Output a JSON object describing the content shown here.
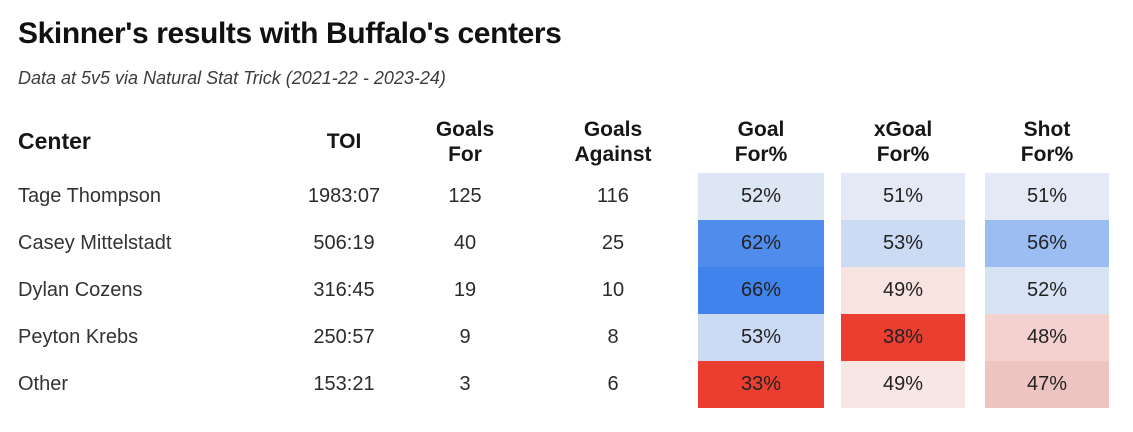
{
  "header": {
    "title": "Skinner's results with Buffalo's centers",
    "subtitle": "Data at 5v5 via Natural Stat Trick (2021-22 - 2023-24)"
  },
  "table": {
    "columns": [
      {
        "line1": "Center",
        "line2": ""
      },
      {
        "line1": "TOI",
        "line2": ""
      },
      {
        "line1": "Goals",
        "line2": "For"
      },
      {
        "line1": "Goals",
        "line2": "Against"
      },
      {
        "line1": "Goal",
        "line2": "For%"
      },
      {
        "line1": "xGoal",
        "line2": "For%"
      },
      {
        "line1": "Shot",
        "line2": "For%"
      }
    ],
    "rows": [
      {
        "center": "Tage Thompson",
        "toi": "1983:07",
        "goals_for": "125",
        "goals_against": "116",
        "goal_for_pct": {
          "value": "52%",
          "bg": "#dde6f3"
        },
        "xgoal_for_pct": {
          "value": "51%",
          "bg": "#e4e9f5"
        },
        "shot_for_pct": {
          "value": "51%",
          "bg": "#e4e9f5"
        }
      },
      {
        "center": "Casey Mittelstadt",
        "toi": "506:19",
        "goals_for": "40",
        "goals_against": "25",
        "goal_for_pct": {
          "value": "62%",
          "bg": "#4f8ceb"
        },
        "xgoal_for_pct": {
          "value": "53%",
          "bg": "#ccdbf4"
        },
        "shot_for_pct": {
          "value": "56%",
          "bg": "#9cbdf1"
        }
      },
      {
        "center": "Dylan Cozens",
        "toi": "316:45",
        "goals_for": "19",
        "goals_against": "10",
        "goal_for_pct": {
          "value": "66%",
          "bg": "#4183ec"
        },
        "xgoal_for_pct": {
          "value": "49%",
          "bg": "#f7e3e0"
        },
        "shot_for_pct": {
          "value": "52%",
          "bg": "#d7e2f5"
        }
      },
      {
        "center": "Peyton Krebs",
        "toi": "250:57",
        "goals_for": "9",
        "goals_against": "8",
        "goal_for_pct": {
          "value": "53%",
          "bg": "#ccdbf4"
        },
        "xgoal_for_pct": {
          "value": "38%",
          "bg": "#ec3e30"
        },
        "shot_for_pct": {
          "value": "48%",
          "bg": "#f2d1ce"
        }
      },
      {
        "center": "Other",
        "toi": "153:21",
        "goals_for": "3",
        "goals_against": "6",
        "goal_for_pct": {
          "value": "33%",
          "bg": "#ec3e30"
        },
        "xgoal_for_pct": {
          "value": "49%",
          "bg": "#f8e6e4"
        },
        "shot_for_pct": {
          "value": "47%",
          "bg": "#eec4c2"
        }
      }
    ]
  },
  "chart_data": {
    "type": "table",
    "title": "Skinner's results with Buffalo's centers",
    "subtitle": "Data at 5v5 via Natural Stat Trick (2021-22 - 2023-24)",
    "columns": [
      "Center",
      "TOI",
      "Goals For",
      "Goals Against",
      "Goal For%",
      "xGoal For%",
      "Shot For%"
    ],
    "rows": [
      [
        "Tage Thompson",
        "1983:07",
        125,
        116,
        "52%",
        "51%",
        "51%"
      ],
      [
        "Casey Mittelstadt",
        "506:19",
        40,
        25,
        "62%",
        "53%",
        "56%"
      ],
      [
        "Dylan Cozens",
        "316:45",
        19,
        10,
        "66%",
        "49%",
        "52%"
      ],
      [
        "Peyton Krebs",
        "250:57",
        9,
        8,
        "53%",
        "38%",
        "48%"
      ],
      [
        "Other",
        "153:21",
        3,
        6,
        "33%",
        "49%",
        "47%"
      ]
    ],
    "heatmap": {
      "applies_to_columns": [
        "Goal For%",
        "xGoal For%",
        "Shot For%"
      ],
      "high_color": "#4183ec",
      "low_color": "#ec3e30",
      "note": "blue shades = higher share, red shades = lower share; each column shaded independently"
    }
  }
}
